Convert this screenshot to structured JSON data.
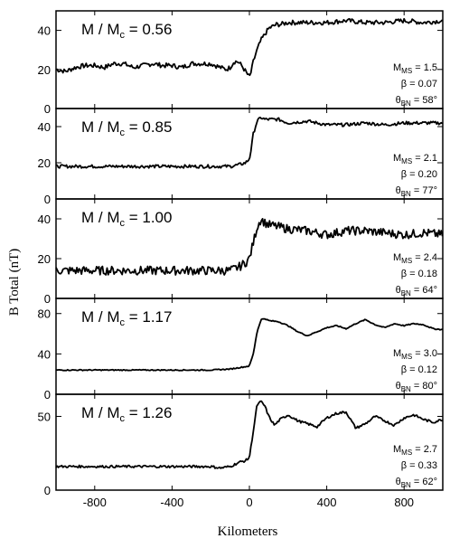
{
  "figure": {
    "ylabel": "B Total (nT)",
    "xlabel": "Kilometers"
  },
  "chart_data": [
    {
      "type": "line",
      "ratio": "0.56",
      "title_prefix": "M / M",
      "title_sub": "c",
      "xlim": [
        -1000,
        1000
      ],
      "ylim": [
        0,
        50
      ],
      "yticks": [
        0,
        20,
        40
      ],
      "params": [
        {
          "sym": "M",
          "sub": "MS",
          "value": "= 1.5"
        },
        {
          "sym": "β",
          "sub": "",
          "value": "= 0.07"
        },
        {
          "sym": "θ",
          "sub": "BN",
          "value": "= 58°"
        }
      ],
      "series": [
        {
          "x": [
            -1000,
            -950,
            -900,
            -850,
            -800,
            -750,
            -700,
            -650,
            -600,
            -550,
            -500,
            -450,
            -400,
            -350,
            -300,
            -250,
            -200,
            -150,
            -120,
            -100,
            -80,
            -60,
            -40,
            -20,
            0,
            10,
            20,
            40,
            60,
            80,
            100,
            120,
            140,
            160,
            200,
            250,
            300,
            400,
            500,
            600,
            700,
            800,
            900,
            1000
          ],
          "y": [
            20,
            19,
            21,
            22,
            22,
            21,
            23,
            23,
            21,
            22,
            23,
            22,
            22,
            21,
            23,
            23,
            23,
            21,
            20,
            21,
            24,
            24,
            22,
            19,
            16,
            19,
            24,
            30,
            35,
            38,
            41,
            42,
            43,
            43,
            44,
            44,
            44,
            44,
            45,
            44,
            44,
            45,
            44,
            45
          ]
        }
      ],
      "noise": 1.2
    },
    {
      "type": "line",
      "ratio": "0.85",
      "title_prefix": "M / M",
      "title_sub": "c",
      "xlim": [
        -1000,
        1000
      ],
      "ylim": [
        0,
        50
      ],
      "yticks": [
        0,
        20,
        40
      ],
      "params": [
        {
          "sym": "M",
          "sub": "MS",
          "value": "= 2.1"
        },
        {
          "sym": "β",
          "sub": "",
          "value": "= 0.20"
        },
        {
          "sym": "θ",
          "sub": "BN",
          "value": "= 77°"
        }
      ],
      "series": [
        {
          "x": [
            -1000,
            -900,
            -800,
            -700,
            -600,
            -500,
            -400,
            -300,
            -200,
            -100,
            -50,
            -20,
            0,
            10,
            20,
            40,
            60,
            80,
            100,
            150,
            200,
            300,
            400,
            500,
            600,
            700,
            800,
            900,
            1000
          ],
          "y": [
            18,
            18,
            18,
            18,
            18,
            18,
            18,
            18,
            18,
            18,
            19,
            20,
            22,
            28,
            36,
            43,
            45,
            44,
            44,
            44,
            42,
            43,
            41,
            41,
            42,
            41,
            42,
            42,
            42
          ]
        }
      ],
      "noise": 0.9
    },
    {
      "type": "line",
      "ratio": "1.00",
      "title_prefix": "M / M",
      "title_sub": "c",
      "xlim": [
        -1000,
        1000
      ],
      "ylim": [
        0,
        50
      ],
      "yticks": [
        0,
        20,
        40
      ],
      "params": [
        {
          "sym": "M",
          "sub": "MS",
          "value": "= 2.4"
        },
        {
          "sym": "β",
          "sub": "",
          "value": "= 0.18"
        },
        {
          "sym": "θ",
          "sub": "BN",
          "value": "= 64°"
        }
      ],
      "series": [
        {
          "x": [
            -1000,
            -900,
            -800,
            -700,
            -600,
            -500,
            -400,
            -300,
            -200,
            -100,
            -50,
            -20,
            0,
            20,
            40,
            60,
            80,
            100,
            150,
            200,
            300,
            400,
            500,
            600,
            700,
            800,
            900,
            1000
          ],
          "y": [
            14,
            14,
            14,
            14,
            14,
            14,
            14,
            14,
            14,
            14,
            16,
            18,
            20,
            28,
            36,
            40,
            38,
            37,
            36,
            35,
            34,
            32,
            34,
            34,
            33,
            32,
            33,
            32
          ]
        }
      ],
      "noise": 2.2
    },
    {
      "type": "line",
      "ratio": "1.17",
      "title_prefix": "M / M",
      "title_sub": "c",
      "xlim": [
        -1000,
        1000
      ],
      "ylim": [
        0,
        95
      ],
      "yticks": [
        0,
        40,
        80
      ],
      "params": [
        {
          "sym": "M",
          "sub": "MS",
          "value": "= 3.0"
        },
        {
          "sym": "β",
          "sub": "",
          "value": "= 0.12"
        },
        {
          "sym": "θ",
          "sub": "BN",
          "value": "= 80°"
        }
      ],
      "series": [
        {
          "x": [
            -1000,
            -800,
            -600,
            -400,
            -200,
            -100,
            0,
            20,
            40,
            60,
            80,
            100,
            150,
            200,
            250,
            300,
            350,
            400,
            450,
            500,
            550,
            600,
            650,
            700,
            750,
            800,
            850,
            900,
            950,
            1000
          ],
          "y": [
            24,
            24,
            24,
            24,
            24,
            25,
            28,
            40,
            62,
            74,
            75,
            73,
            72,
            68,
            62,
            58,
            62,
            66,
            68,
            65,
            70,
            74,
            69,
            66,
            70,
            68,
            70,
            69,
            65,
            64
          ]
        }
      ],
      "noise": 0.5
    },
    {
      "type": "line",
      "ratio": "1.26",
      "title_prefix": "M / M",
      "title_sub": "c",
      "xlim": [
        -1000,
        1000
      ],
      "ylim": [
        0,
        65
      ],
      "yticks": [
        0,
        50
      ],
      "params": [
        {
          "sym": "M",
          "sub": "MS",
          "value": "= 2.7"
        },
        {
          "sym": "β",
          "sub": "",
          "value": "= 0.33"
        },
        {
          "sym": "θ",
          "sub": "BN",
          "value": "= 62°"
        }
      ],
      "series": [
        {
          "x": [
            -1000,
            -900,
            -800,
            -700,
            -600,
            -500,
            -400,
            -300,
            -200,
            -150,
            -100,
            -50,
            -20,
            0,
            20,
            40,
            60,
            80,
            100,
            130,
            160,
            200,
            250,
            300,
            350,
            400,
            450,
            500,
            550,
            600,
            650,
            700,
            750,
            800,
            850,
            900,
            950,
            1000
          ],
          "y": [
            16,
            16,
            16,
            16,
            16,
            16,
            16,
            16,
            16,
            15,
            16,
            19,
            20,
            22,
            40,
            58,
            60,
            57,
            50,
            44,
            48,
            51,
            47,
            45,
            43,
            49,
            52,
            53,
            42,
            45,
            50,
            47,
            44,
            49,
            51,
            48,
            46,
            48
          ]
        }
      ],
      "noise": 0.8
    }
  ],
  "x_axis": {
    "xlim": [
      -1000,
      1000
    ],
    "ticks": [
      -800,
      -400,
      0,
      400,
      800
    ],
    "tick_labels": [
      "-800",
      "-400",
      "0",
      "400",
      "800"
    ]
  }
}
